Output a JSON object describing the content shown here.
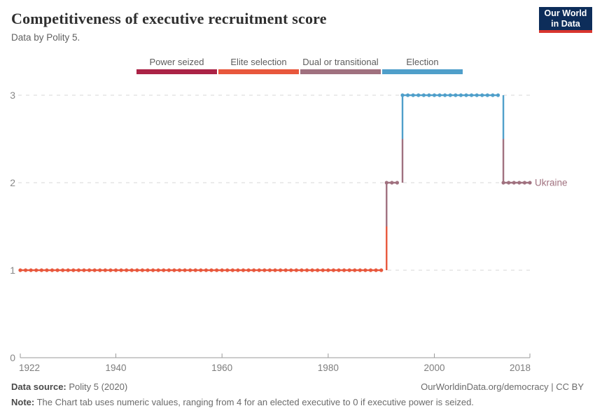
{
  "header": {
    "title": "Competitiveness of executive recruitment score",
    "subtitle": "Data by Polity 5.",
    "logo": {
      "line1": "Our World",
      "line2": "in Data",
      "bg_color": "#0d2d5a",
      "accent_color": "#d8352e"
    }
  },
  "legend": {
    "position": "top",
    "items": [
      {
        "label": "Power seized",
        "color": "#ab2346"
      },
      {
        "label": "Elite selection",
        "color": "#e8573c"
      },
      {
        "label": "Dual or transitional",
        "color": "#a0717f"
      },
      {
        "label": "Election",
        "color": "#4f9fca"
      }
    ]
  },
  "chart_data": {
    "type": "line",
    "subtype": "step",
    "title": "Competitiveness of executive recruitment score",
    "entity": "Ukraine",
    "series_label": "Ukraine",
    "series_label_color": "#a0717f",
    "xlim": [
      1922,
      2018
    ],
    "ylim": [
      0,
      3
    ],
    "x_ticks": [
      1922,
      1940,
      1960,
      1980,
      2000,
      2018
    ],
    "y_ticks": [
      0,
      1,
      2,
      3
    ],
    "grid": "dashed horizontal",
    "dots_every_year": true,
    "segments": [
      {
        "start_year": 1922,
        "end_year": 1990,
        "value": 1,
        "category": "Elite selection",
        "color": "#e8573c"
      },
      {
        "start_year": 1991,
        "end_year": 1993,
        "value": 2,
        "category": "Dual or transitional",
        "color": "#a0717f"
      },
      {
        "start_year": 1994,
        "end_year": 2012,
        "value": 3,
        "category": "Election",
        "color": "#4f9fca"
      },
      {
        "start_year": 2013,
        "end_year": 2018,
        "value": 2,
        "category": "Dual or transitional",
        "color": "#a0717f"
      }
    ],
    "colors": {
      "gridline": "#d7d7d7",
      "axis": "#9a9a9a",
      "x_tick_label": "#7d7d7d",
      "y_tick_label": "#888888"
    }
  },
  "footer": {
    "source_label": "Data source:",
    "source_value": " Polity 5 (2020)",
    "link_text": "OurWorldinData.org/democracy",
    "license_text": " | CC BY",
    "note_label": "Note:",
    "note_value": " The Chart tab uses numeric values, ranging from 4 for an elected executive to 0 if executive power is seized."
  }
}
